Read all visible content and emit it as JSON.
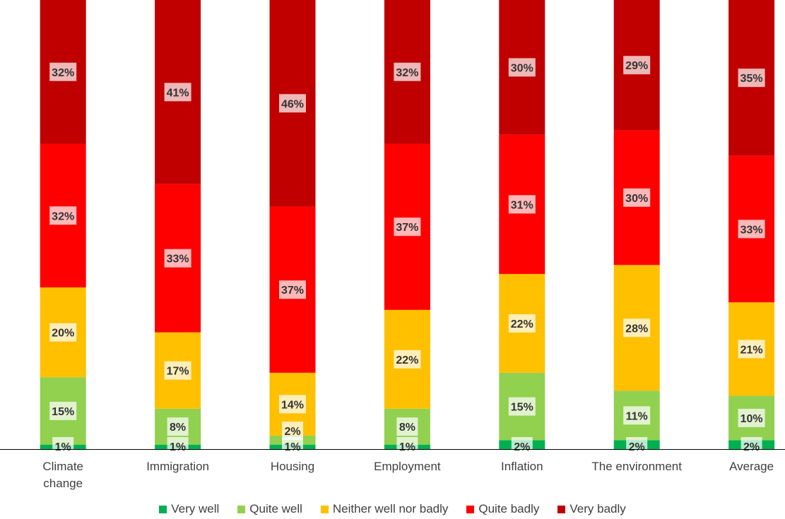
{
  "chart_data": {
    "type": "bar",
    "stacked": true,
    "percent_stacked": true,
    "title": "",
    "xlabel": "",
    "ylabel": "",
    "ylim": [
      0,
      100
    ],
    "legend_position": "bottom",
    "categories": [
      "Climate change",
      "Immigration",
      "Housing",
      "Employment",
      "Inflation",
      "The environment",
      "Average"
    ],
    "category_lines": [
      [
        "Climate",
        "change"
      ],
      [
        "Immigration"
      ],
      [
        "Housing"
      ],
      [
        "Employment"
      ],
      [
        "Inflation"
      ],
      [
        "The environment"
      ],
      [
        "Average"
      ]
    ],
    "series": [
      {
        "name": "Very well",
        "color": "#00B050",
        "values": [
          1,
          1,
          1,
          1,
          2,
          2,
          2
        ],
        "labels": [
          "1%",
          "1%",
          "1%",
          "1%",
          "2%",
          "2%",
          "2%"
        ]
      },
      {
        "name": "Quite well",
        "color": "#92D050",
        "values": [
          15,
          8,
          2,
          8,
          15,
          11,
          10
        ],
        "labels": [
          "15%",
          "8%",
          "2%",
          "8%",
          "15%",
          "11%",
          "10%"
        ]
      },
      {
        "name": "Neither well nor badly",
        "color": "#FFC000",
        "values": [
          20,
          17,
          14,
          22,
          22,
          28,
          21
        ],
        "labels": [
          "20%",
          "17%",
          "14%",
          "22%",
          "22%",
          "28%",
          "21%"
        ]
      },
      {
        "name": "Quite badly",
        "color": "#FF0000",
        "values": [
          32,
          33,
          37,
          37,
          31,
          30,
          33
        ],
        "labels": [
          "32%",
          "33%",
          "37%",
          "37%",
          "31%",
          "30%",
          "33%"
        ]
      },
      {
        "name": "Very badly",
        "color": "#C00000",
        "values": [
          32,
          41,
          46,
          32,
          30,
          29,
          35
        ],
        "labels": [
          "32%",
          "41%",
          "46%",
          "32%",
          "30%",
          "29%",
          "35%"
        ]
      }
    ]
  }
}
